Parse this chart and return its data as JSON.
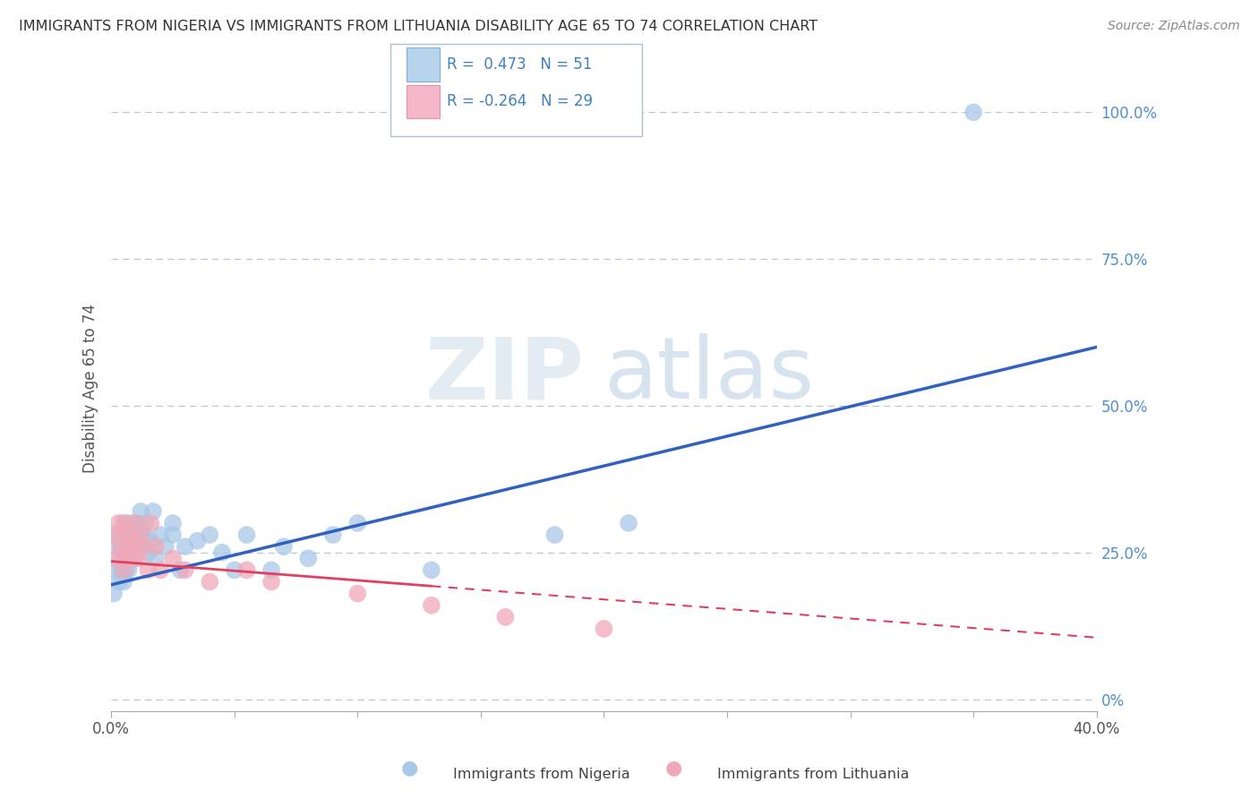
{
  "title": "IMMIGRANTS FROM NIGERIA VS IMMIGRANTS FROM LITHUANIA DISABILITY AGE 65 TO 74 CORRELATION CHART",
  "source": "Source: ZipAtlas.com",
  "ylabel": "Disability Age 65 to 74",
  "xlim": [
    0.0,
    0.4
  ],
  "ylim": [
    -0.02,
    1.08
  ],
  "ytick_labels_right": [
    "0%",
    "25.0%",
    "50.0%",
    "75.0%",
    "100.0%"
  ],
  "yticks_right": [
    0.0,
    0.25,
    0.5,
    0.75,
    1.0
  ],
  "blue_color": "#a8c8e8",
  "pink_color": "#f0a8b8",
  "line_blue": "#3060c0",
  "line_pink": "#e04060",
  "watermark_zip": "ZIP",
  "watermark_atlas": "atlas",
  "background_color": "#ffffff",
  "grid_color": "#b8c8d8",
  "nigeria_x": [
    0.001,
    0.002,
    0.002,
    0.003,
    0.003,
    0.004,
    0.004,
    0.004,
    0.005,
    0.005,
    0.005,
    0.006,
    0.006,
    0.006,
    0.007,
    0.007,
    0.007,
    0.008,
    0.008,
    0.009,
    0.009,
    0.01,
    0.01,
    0.011,
    0.012,
    0.013,
    0.014,
    0.015,
    0.016,
    0.017,
    0.018,
    0.02,
    0.022,
    0.025,
    0.025,
    0.028,
    0.03,
    0.035,
    0.04,
    0.045,
    0.05,
    0.055,
    0.065,
    0.07,
    0.08,
    0.09,
    0.1,
    0.13,
    0.18,
    0.21,
    0.35
  ],
  "nigeria_y": [
    0.18,
    0.22,
    0.26,
    0.2,
    0.28,
    0.24,
    0.22,
    0.26,
    0.25,
    0.3,
    0.2,
    0.26,
    0.24,
    0.22,
    0.28,
    0.25,
    0.22,
    0.3,
    0.26,
    0.27,
    0.24,
    0.28,
    0.3,
    0.26,
    0.32,
    0.28,
    0.3,
    0.25,
    0.27,
    0.32,
    0.24,
    0.28,
    0.26,
    0.3,
    0.28,
    0.22,
    0.26,
    0.27,
    0.28,
    0.25,
    0.22,
    0.28,
    0.22,
    0.26,
    0.24,
    0.28,
    0.3,
    0.22,
    0.28,
    0.3,
    1.0
  ],
  "lithuania_x": [
    0.001,
    0.002,
    0.003,
    0.004,
    0.005,
    0.005,
    0.006,
    0.006,
    0.007,
    0.008,
    0.009,
    0.01,
    0.01,
    0.011,
    0.012,
    0.013,
    0.015,
    0.016,
    0.018,
    0.02,
    0.025,
    0.03,
    0.04,
    0.055,
    0.065,
    0.1,
    0.13,
    0.16,
    0.2
  ],
  "lithuania_y": [
    0.28,
    0.24,
    0.3,
    0.26,
    0.28,
    0.22,
    0.24,
    0.3,
    0.26,
    0.28,
    0.24,
    0.26,
    0.3,
    0.24,
    0.28,
    0.26,
    0.22,
    0.3,
    0.26,
    0.22,
    0.24,
    0.22,
    0.2,
    0.22,
    0.2,
    0.18,
    0.16,
    0.14,
    0.12
  ],
  "blue_line_x0": 0.0,
  "blue_line_y0": 0.195,
  "blue_line_x1": 0.4,
  "blue_line_y1": 0.6,
  "pink_line_x0": 0.0,
  "pink_line_y0": 0.235,
  "pink_line_x1": 0.4,
  "pink_line_y1": 0.105
}
